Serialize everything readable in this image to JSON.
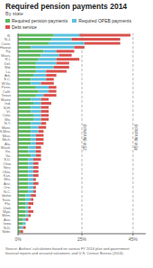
{
  "chart_data": {
    "type": "bar",
    "orientation": "horizontal",
    "stacked": true,
    "title": "Required pension payments 2014",
    "subtitle": "By state",
    "source": "Source: Authors' calculations based on various FY 2014 plan and government\nfinancial reports and actuarial valuations; and U.S. Census Bureau (2014).",
    "categories": [
      "Ill.",
      "N.J.",
      "Conn.",
      "Hawaii",
      "Ky.",
      "Mass.",
      "R.I.",
      "Del.",
      "Md.",
      "La.",
      "Ark.",
      "S.C.",
      "W.Va.",
      "Penn.",
      "Calif.",
      "Texas",
      "Maine",
      "Ind.",
      "N.H.",
      "Vt.",
      "Colo.",
      "Mo.",
      "N.Y.",
      "Mont.",
      "N.Mex.",
      "Miss.",
      "Mich.",
      "Ala.",
      "Wash.",
      "Ga.",
      "Va.",
      "S.D.",
      "Ohio",
      "Nev.",
      "Okla.",
      "Kan.",
      "Wis.",
      "Ariz.",
      "Ore.",
      "N.C.",
      "Idaho",
      "Tenn.",
      "Fla.",
      "Utah",
      "Wyo.",
      "Minn.",
      "Ariz.",
      "Iowa",
      "N.D.",
      "Nebr."
    ],
    "series": [
      {
        "name": "Required pension payments",
        "color": "#5cb85c",
        "values": [
          14,
          13,
          12,
          5,
          10,
          9,
          8,
          7,
          7,
          7,
          6,
          5,
          5,
          7,
          8,
          7,
          5,
          6,
          5,
          5,
          6,
          6,
          5,
          5,
          5,
          5,
          5,
          5,
          4,
          4,
          5,
          4,
          4,
          4,
          4,
          4,
          4,
          4,
          4,
          4,
          3,
          3,
          3,
          3,
          3,
          3,
          2,
          2,
          1,
          1
        ]
      },
      {
        "name": "Required OPEB payments",
        "color": "#5bc0de",
        "values": [
          10,
          8,
          14,
          17,
          5,
          7,
          7,
          8,
          7,
          4,
          5,
          6,
          4,
          5,
          4,
          3,
          4,
          3,
          4,
          4,
          3,
          3,
          4,
          3,
          3,
          2,
          2,
          2,
          3,
          3,
          2,
          2,
          2,
          2,
          2,
          2,
          2,
          2,
          2,
          2,
          2,
          2,
          1,
          1,
          1,
          1,
          1,
          1,
          1,
          0
        ]
      },
      {
        "name": "Debt service",
        "color": "#d9534f",
        "values": [
          20,
          19,
          14,
          4,
          7,
          5,
          9,
          5,
          6,
          8,
          4,
          3,
          5,
          3,
          3,
          5,
          3,
          4,
          3,
          3,
          3,
          3,
          2,
          3,
          2,
          3,
          3,
          3,
          2,
          2,
          2,
          3,
          2,
          2,
          2,
          2,
          1,
          2,
          1,
          1,
          2,
          1,
          2,
          1,
          2,
          1,
          1,
          0,
          1,
          1
        ]
      }
    ],
    "xlim": [
      0,
      50
    ],
    "xticks": [
      {
        "value": 0,
        "label": "0%"
      },
      {
        "value": 25,
        "label": "25%"
      },
      {
        "value": 45,
        "label": "45%"
      }
    ],
    "annotations": [
      {
        "x": 25,
        "text": "25% threshold"
      },
      {
        "x": 45,
        "text": "45% threshold"
      }
    ],
    "grid": false,
    "legend": "top"
  }
}
